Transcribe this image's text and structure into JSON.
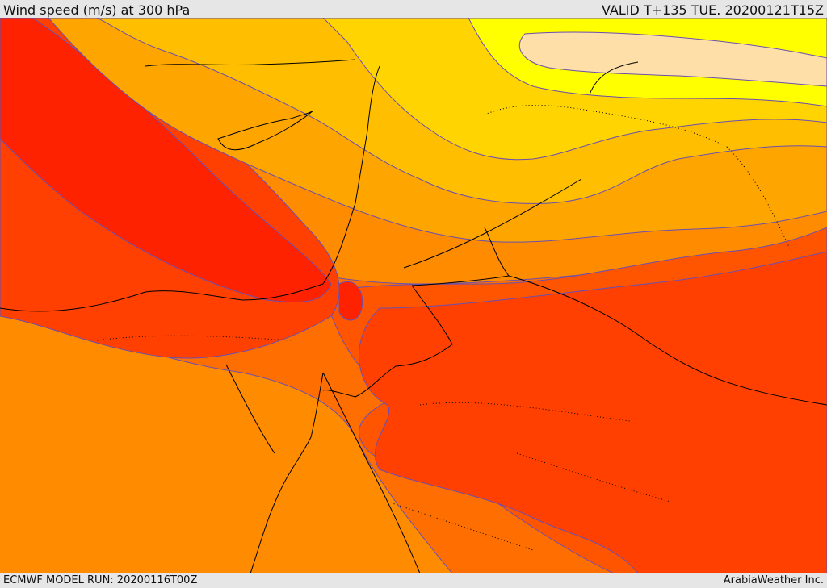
{
  "header": {
    "title": "Wind speed (m/s) at 300 hPa",
    "valid": "VALID T+135 TUE. 20200121T15Z"
  },
  "footer": {
    "model_run": "ECMWF MODEL RUN: 20200116T00Z",
    "credit": "ArabiaWeather Inc."
  },
  "map": {
    "variable": "wind speed",
    "level": "300 hPa",
    "colors": {
      "weakest": "#ffdfa8",
      "yellow": "#ffff00",
      "gold": "#ffd400",
      "amber": "#ffbf00",
      "orange_light": "#ffa500",
      "orange": "#ff8c00",
      "orange_dark": "#ff6e00",
      "red_orange": "#ff5500",
      "red_light": "#ff4000",
      "jet_core": "#ff2200",
      "contour_line": "#6a4fb0",
      "coastline": "#000000"
    }
  }
}
